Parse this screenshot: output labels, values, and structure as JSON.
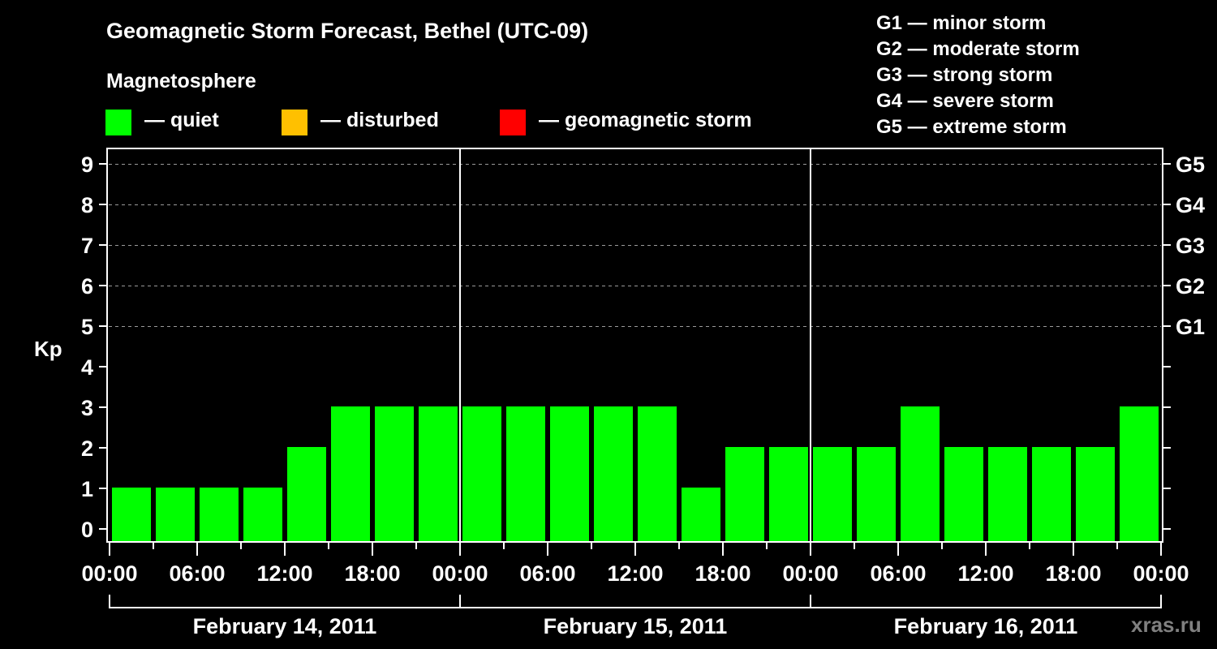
{
  "title": "Geomagnetic Storm Forecast, Bethel (UTC-09)",
  "subtitle": "Magnetosphere",
  "legend": [
    {
      "label": "— quiet",
      "color": "#00ff00",
      "x": 130
    },
    {
      "label": "— disturbed",
      "color": "#ffc000",
      "x": 347
    },
    {
      "label": "— geomagnetic storm",
      "color": "#ff0000",
      "x": 616
    }
  ],
  "g_scale_legend": [
    "G1 — minor storm",
    "G2 — moderate storm",
    "G3 — strong storm",
    "G4 — severe storm",
    "G5 — extreme storm"
  ],
  "watermark": "xras.ru",
  "colors": {
    "quiet": "#00ff00",
    "disturbed": "#ffc000",
    "storm": "#ff0000",
    "background": "#000000",
    "axis": "#ffffff",
    "grid": "#9a9a9a"
  },
  "chart_data": {
    "type": "bar",
    "title": "Geomagnetic Storm Forecast, Bethel (UTC-09)",
    "xlabel": "",
    "ylabel": "Kp",
    "ylim": [
      0,
      9
    ],
    "y_ticks": [
      0,
      1,
      2,
      3,
      4,
      5,
      6,
      7,
      8,
      9
    ],
    "y2_ticks": [
      {
        "kp": 5,
        "label": "G1"
      },
      {
        "kp": 6,
        "label": "G2"
      },
      {
        "kp": 7,
        "label": "G3"
      },
      {
        "kp": 8,
        "label": "G4"
      },
      {
        "kp": 9,
        "label": "G5"
      }
    ],
    "grid": {
      "horizontal_dashed_at": [
        5,
        6,
        7,
        8,
        9
      ]
    },
    "x_tick_labels": [
      "00:00",
      "06:00",
      "12:00",
      "18:00",
      "00:00",
      "06:00",
      "12:00",
      "18:00",
      "00:00",
      "06:00",
      "12:00",
      "18:00",
      "00:00"
    ],
    "days": [
      "February 14, 2011",
      "February 15, 2011",
      "February 16, 2011"
    ],
    "interval_hours": 3,
    "categories": [
      "Feb 14 00-03",
      "Feb 14 03-06",
      "Feb 14 06-09",
      "Feb 14 09-12",
      "Feb 14 12-15",
      "Feb 14 15-18",
      "Feb 14 18-21",
      "Feb 14 21-24",
      "Feb 15 00-03",
      "Feb 15 03-06",
      "Feb 15 06-09",
      "Feb 15 09-12",
      "Feb 15 12-15",
      "Feb 15 15-18",
      "Feb 15 18-21",
      "Feb 15 21-24",
      "Feb 16 00-03",
      "Feb 16 03-06",
      "Feb 16 06-09",
      "Feb 16 09-12",
      "Feb 16 12-15",
      "Feb 16 15-18",
      "Feb 16 18-21",
      "Feb 16 21-24"
    ],
    "values": [
      1,
      1,
      1,
      1,
      2,
      3,
      3,
      3,
      3,
      3,
      3,
      3,
      3,
      1,
      2,
      2,
      2,
      2,
      3,
      2,
      2,
      2,
      2,
      3
    ],
    "bar_status": "quiet",
    "legend": [
      "quiet",
      "disturbed",
      "geomagnetic storm"
    ]
  }
}
